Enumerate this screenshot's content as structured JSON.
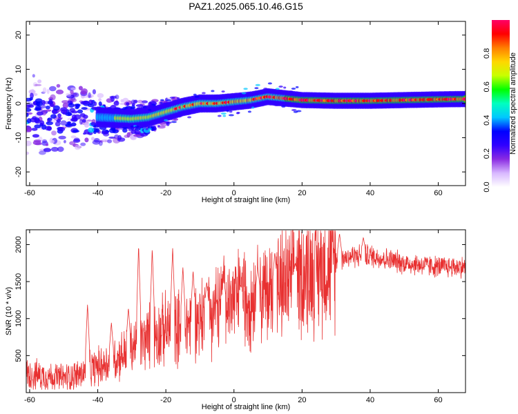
{
  "title": "PAZ1.2025.065.10.46.G15",
  "spectrogram": {
    "type": "heatmap",
    "xlabel": "Height of straight line (km)",
    "ylabel": "Frequency (Hz)",
    "xlim": [
      -61,
      68
    ],
    "ylim": [
      -24,
      24
    ],
    "xticks": [
      -60,
      -40,
      -20,
      0,
      20,
      40,
      60
    ],
    "yticks": [
      -20,
      -10,
      0,
      10,
      20
    ],
    "colorbar": {
      "label": "Normalized spectral amplitude",
      "ticks": [
        0.0,
        0.2,
        0.4,
        0.6,
        0.8
      ],
      "tick_labels": [
        "0.0",
        "0.2",
        "0.4",
        "0.6",
        "0.8"
      ],
      "range": [
        0,
        1
      ],
      "colors": [
        "#ffffff",
        "#d8b8ff",
        "#8a2be2",
        "#3000ff",
        "#0000ff",
        "#00c8ff",
        "#00ffc0",
        "#00ff00",
        "#c8ff00",
        "#ffd700",
        "#ff7f00",
        "#ff0000",
        "#ff0066"
      ]
    },
    "ridge_center_hz": [
      [
        -60,
        -3
      ],
      [
        -50,
        -4
      ],
      [
        -40,
        -4
      ],
      [
        -30,
        -4.5
      ],
      [
        -25,
        -4
      ],
      [
        -20,
        -2.5
      ],
      [
        -15,
        -1
      ],
      [
        -10,
        0
      ],
      [
        -5,
        0
      ],
      [
        0,
        0.5
      ],
      [
        5,
        1
      ],
      [
        10,
        2
      ],
      [
        15,
        1.5
      ],
      [
        20,
        1
      ],
      [
        30,
        0.8
      ],
      [
        40,
        0.8
      ],
      [
        50,
        1
      ],
      [
        60,
        1.2
      ],
      [
        68,
        1.3
      ]
    ]
  },
  "snr": {
    "type": "line",
    "xlabel": "Height of straight line (km)",
    "ylabel": "SNR (10 * v/v)",
    "xlim": [
      -61,
      68
    ],
    "ylim": [
      0,
      2200
    ],
    "xticks": [
      -60,
      -40,
      -20,
      0,
      20,
      40,
      60
    ],
    "yticks": [
      500,
      1000,
      1500,
      2000
    ],
    "color": "#e83030",
    "trend": [
      [
        -61,
        250
      ],
      [
        -50,
        200
      ],
      [
        -45,
        250
      ],
      [
        -40,
        350
      ],
      [
        -35,
        450
      ],
      [
        -30,
        600
      ],
      [
        -25,
        750
      ],
      [
        -20,
        850
      ],
      [
        -15,
        900
      ],
      [
        -10,
        1000
      ],
      [
        -5,
        1150
      ],
      [
        0,
        1250
      ],
      [
        5,
        1300
      ],
      [
        10,
        1350
      ],
      [
        15,
        1450
      ],
      [
        20,
        1600
      ],
      [
        25,
        1700
      ],
      [
        30,
        1800
      ],
      [
        35,
        1850
      ],
      [
        40,
        1850
      ],
      [
        45,
        1800
      ],
      [
        50,
        1750
      ],
      [
        60,
        1700
      ],
      [
        68,
        1700
      ]
    ],
    "peaks": [
      [
        -43,
        1200
      ],
      [
        -36,
        950
      ],
      [
        -31,
        1150
      ],
      [
        -28,
        2000
      ],
      [
        -24,
        1950
      ],
      [
        -18,
        1950
      ],
      [
        -15,
        1700
      ],
      [
        -12,
        1650
      ],
      [
        -8,
        1500
      ],
      [
        -3,
        1550
      ],
      [
        2,
        1450
      ],
      [
        7,
        1700
      ],
      [
        12,
        1900
      ],
      [
        18,
        1750
      ],
      [
        31,
        2150
      ],
      [
        38,
        2100
      ]
    ]
  }
}
